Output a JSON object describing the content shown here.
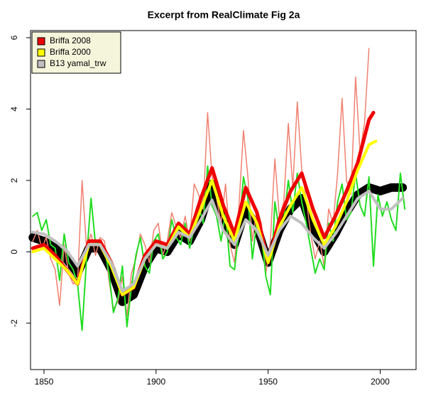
{
  "chart_data": {
    "type": "line",
    "title": "Excerpt from RealClimate Fig 2a",
    "xlim": [
      1844,
      2016
    ],
    "ylim": [
      -3.3,
      6.2
    ],
    "xticks": [
      1850,
      1900,
      1950,
      2000
    ],
    "yticks": [
      -2,
      0,
      2,
      4,
      6
    ],
    "legend": "top-left",
    "series": [
      {
        "color": "#000000",
        "width": 12,
        "x": [
          1845,
          1850,
          1855,
          1860,
          1865,
          1870,
          1875,
          1880,
          1885,
          1890,
          1895,
          1900,
          1905,
          1910,
          1915,
          1920,
          1925,
          1930,
          1935,
          1940,
          1945,
          1950,
          1955,
          1960,
          1965,
          1970,
          1975,
          1980,
          1985,
          1990,
          1995,
          2000,
          2005,
          2010
        ],
        "values": [
          0.4,
          0.3,
          0.1,
          -0.2,
          -0.6,
          0.1,
          0.1,
          -0.5,
          -1.4,
          -1.2,
          -0.4,
          0.1,
          0.0,
          0.5,
          0.3,
          0.9,
          1.9,
          0.9,
          0.2,
          1.2,
          0.7,
          -0.3,
          0.6,
          1.2,
          1.5,
          0.6,
          0.0,
          0.5,
          1.1,
          1.6,
          1.8,
          1.7,
          1.8,
          1.8
        ]
      },
      {
        "color": "#f08070",
        "width": 1.5,
        "x": [
          1845,
          1847,
          1849,
          1851,
          1853,
          1855,
          1857,
          1859,
          1861,
          1863,
          1865,
          1867,
          1869,
          1871,
          1873,
          1875,
          1877,
          1879,
          1881,
          1883,
          1885,
          1887,
          1889,
          1891,
          1893,
          1895,
          1897,
          1899,
          1901,
          1903,
          1905,
          1907,
          1909,
          1911,
          1913,
          1915,
          1917,
          1919,
          1921,
          1923,
          1925,
          1927,
          1929,
          1931,
          1933,
          1935,
          1937,
          1939,
          1941,
          1943,
          1945,
          1947,
          1949,
          1951,
          1953,
          1955,
          1957,
          1959,
          1961,
          1963,
          1965,
          1967,
          1969,
          1971,
          1973,
          1975,
          1977,
          1979,
          1981,
          1983,
          1985,
          1987,
          1989,
          1991,
          1993,
          1995
        ],
        "values": [
          0.3,
          0.6,
          0.1,
          0.4,
          -0.2,
          -0.5,
          -1.5,
          0.2,
          -0.6,
          -0.9,
          -0.8,
          2.0,
          0.1,
          0.5,
          -0.1,
          0.4,
          0.3,
          -0.8,
          -1.6,
          -1.4,
          -0.7,
          -1.8,
          -0.6,
          -0.2,
          0.5,
          0.2,
          -0.3,
          0.6,
          0.8,
          -0.1,
          0.3,
          1.1,
          0.7,
          0.4,
          1.0,
          0.3,
          1.9,
          1.6,
          1.2,
          3.9,
          2.1,
          1.5,
          0.8,
          1.9,
          0.2,
          -0.3,
          1.3,
          3.4,
          2.1,
          0.3,
          1.2,
          0.8,
          -0.6,
          0.3,
          2.6,
          1.0,
          1.4,
          3.6,
          1.8,
          4.2,
          2.3,
          1.5,
          0.5,
          -0.2,
          0.3,
          -0.4,
          1.2,
          0.8,
          2.2,
          4.3,
          2.0,
          1.6,
          4.9,
          2.8,
          3.6,
          5.7
        ]
      },
      {
        "color": "#22dd22",
        "width": 2,
        "x": [
          1845,
          1847,
          1849,
          1851,
          1853,
          1855,
          1857,
          1859,
          1861,
          1863,
          1865,
          1867,
          1869,
          1871,
          1873,
          1875,
          1877,
          1879,
          1881,
          1883,
          1885,
          1887,
          1889,
          1891,
          1893,
          1895,
          1897,
          1899,
          1901,
          1903,
          1905,
          1907,
          1909,
          1911,
          1913,
          1915,
          1917,
          1919,
          1921,
          1923,
          1925,
          1927,
          1929,
          1931,
          1933,
          1935,
          1937,
          1939,
          1941,
          1943,
          1945,
          1947,
          1949,
          1951,
          1953,
          1955,
          1957,
          1959,
          1961,
          1963,
          1965,
          1967,
          1969,
          1971,
          1973,
          1975,
          1977,
          1979,
          1981,
          1983,
          1985,
          1987,
          1989,
          1991,
          1993,
          1995,
          1997,
          1999,
          2001,
          2003,
          2005,
          2007,
          2009,
          2011
        ],
        "values": [
          1.0,
          1.1,
          0.6,
          0.9,
          0.2,
          0.1,
          -0.8,
          0.5,
          -0.3,
          -0.5,
          -0.9,
          -2.2,
          -0.2,
          1.5,
          0.2,
          0.3,
          0.1,
          -0.6,
          -1.7,
          -1.3,
          -0.4,
          -2.1,
          -1.0,
          -0.1,
          0.4,
          -0.4,
          -0.6,
          0.3,
          0.5,
          -0.2,
          0.0,
          0.9,
          0.4,
          0.2,
          0.8,
          0.1,
          0.7,
          1.3,
          0.8,
          2.4,
          1.3,
          1.0,
          0.3,
          1.1,
          -0.4,
          -0.5,
          0.6,
          2.1,
          1.5,
          -0.2,
          0.9,
          0.5,
          -0.7,
          -1.2,
          1.4,
          0.6,
          0.9,
          2.0,
          1.1,
          2.2,
          1.4,
          0.8,
          0.1,
          -0.6,
          -0.2,
          -0.5,
          0.8,
          0.3,
          1.4,
          1.9,
          0.9,
          1.1,
          2.2,
          1.3,
          1.0,
          2.1,
          -0.4,
          1.6,
          1.0,
          1.4,
          0.9,
          0.6,
          2.2,
          1.2
        ]
      },
      {
        "name": "Briffa 2008",
        "color": "#ee0000",
        "width": 5,
        "x": [
          1845,
          1850,
          1855,
          1860,
          1865,
          1870,
          1875,
          1880,
          1885,
          1890,
          1895,
          1900,
          1905,
          1910,
          1915,
          1920,
          1925,
          1930,
          1935,
          1940,
          1945,
          1950,
          1955,
          1960,
          1965,
          1970,
          1975,
          1980,
          1985,
          1990,
          1995,
          1997
        ],
        "values": [
          0.1,
          0.2,
          -0.1,
          -0.5,
          -0.9,
          0.3,
          0.3,
          -0.3,
          -1.2,
          -1.0,
          -0.1,
          0.3,
          0.2,
          0.8,
          0.5,
          1.5,
          2.35,
          1.3,
          0.5,
          1.8,
          1.1,
          -0.3,
          0.9,
          1.7,
          2.2,
          1.2,
          0.4,
          1.0,
          1.7,
          2.5,
          3.7,
          3.9
        ]
      },
      {
        "name": "Briffa 2000",
        "color": "#ffff00",
        "width": 4,
        "x": [
          1845,
          1850,
          1855,
          1860,
          1865,
          1870,
          1875,
          1880,
          1885,
          1890,
          1895,
          1900,
          1905,
          1910,
          1915,
          1920,
          1925,
          1930,
          1935,
          1940,
          1945,
          1950,
          1955,
          1960,
          1965,
          1970,
          1975,
          1980,
          1985,
          1990,
          1995,
          1998
        ],
        "values": [
          0.0,
          0.1,
          -0.2,
          -0.5,
          -0.9,
          0.2,
          0.2,
          -0.4,
          -1.2,
          -1.0,
          -0.2,
          0.2,
          0.1,
          0.7,
          0.4,
          1.2,
          2.0,
          1.0,
          0.3,
          1.4,
          0.8,
          -0.3,
          0.7,
          1.3,
          1.8,
          0.9,
          0.2,
          0.7,
          1.4,
          2.3,
          3.0,
          3.1
        ]
      },
      {
        "name": "B13 yamal_trw",
        "color": "#c0c0c0",
        "width": 4,
        "x": [
          1845,
          1850,
          1855,
          1860,
          1865,
          1870,
          1875,
          1880,
          1885,
          1890,
          1895,
          1900,
          1905,
          1910,
          1915,
          1920,
          1925,
          1930,
          1935,
          1940,
          1945,
          1950,
          1955,
          1960,
          1965,
          1970,
          1975,
          1980,
          1985,
          1990,
          1995,
          2000,
          2005,
          2010
        ],
        "values": [
          0.55,
          0.5,
          0.3,
          0.05,
          -0.4,
          0.2,
          0.2,
          -0.3,
          -1.1,
          -0.9,
          -0.2,
          0.2,
          0.1,
          0.55,
          0.4,
          0.9,
          1.45,
          0.6,
          0.2,
          0.9,
          0.6,
          -0.1,
          0.6,
          1.0,
          0.8,
          0.4,
          0.1,
          0.5,
          1.0,
          1.5,
          1.7,
          1.2,
          1.2,
          1.5
        ]
      }
    ]
  }
}
